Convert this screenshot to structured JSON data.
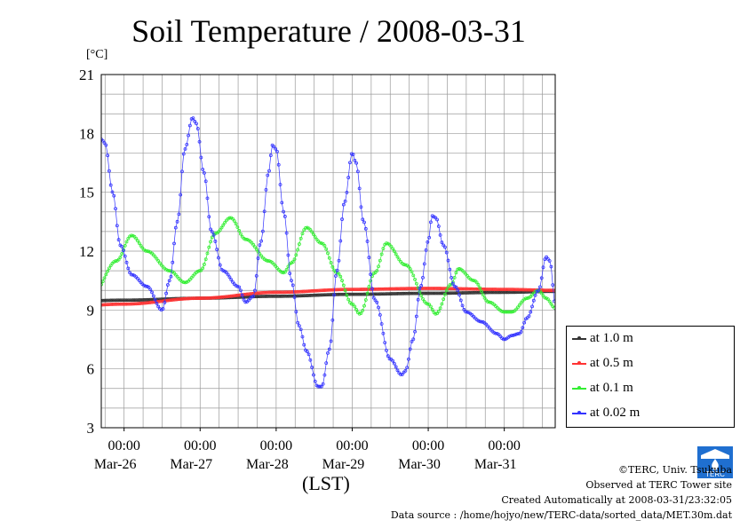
{
  "title": "Soil Temperature / 2008-03-31",
  "unit_label": "[°C]",
  "x_axis_label": "(LST)",
  "legend": [
    {
      "label": "at 1.0 m",
      "color": "#333333"
    },
    {
      "label": "at 0.5 m",
      "color": "#ff3333"
    },
    {
      "label": "at 0.1 m",
      "color": "#33ee33"
    },
    {
      "label": "at 0.02 m",
      "color": "#3333ff"
    }
  ],
  "footer": {
    "copyright": "©TERC, Univ. Tsukuba",
    "site": "Observed at TERC Tower site",
    "created": "Created Automatically at 2008-03-31/23:32:05",
    "source": "Data source : /home/hojyo/new/TERC-data/sorted_data/MET.30m.dat"
  },
  "logo_text": "TERC",
  "chart_data": {
    "type": "line",
    "title": "Soil Temperature / 2008-03-31",
    "ylabel": "[°C]",
    "xlabel": "(LST)",
    "ylim": [
      3,
      21
    ],
    "yticks": [
      3,
      6,
      9,
      12,
      15,
      18,
      21
    ],
    "xlim_days": [
      -0.3,
      5.67
    ],
    "x_ticks": [
      {
        "time": "00:00",
        "date": "Mar-26"
      },
      {
        "time": "00:00",
        "date": "Mar-27"
      },
      {
        "time": "00:00",
        "date": "Mar-28"
      },
      {
        "time": "00:00",
        "date": "Mar-29"
      },
      {
        "time": "00:00",
        "date": "Mar-30"
      },
      {
        "time": "00:00",
        "date": "Mar-31"
      }
    ],
    "grid": true,
    "legend_position": "right",
    "series": [
      {
        "name": "at 1.0 m",
        "color": "#333333",
        "points": [
          [
            -1.0,
            9.4
          ],
          [
            0.0,
            9.5
          ],
          [
            1.0,
            9.6
          ],
          [
            2.0,
            9.7
          ],
          [
            3.0,
            9.8
          ],
          [
            4.0,
            9.85
          ],
          [
            5.0,
            9.9
          ],
          [
            5.67,
            9.95
          ]
        ]
      },
      {
        "name": "at 0.5 m",
        "color": "#ff3333",
        "points": [
          [
            -1.0,
            9.1
          ],
          [
            0.0,
            9.3
          ],
          [
            1.0,
            9.6
          ],
          [
            2.0,
            9.9
          ],
          [
            3.0,
            10.05
          ],
          [
            4.0,
            10.1
          ],
          [
            5.0,
            10.05
          ],
          [
            5.67,
            10.0
          ]
        ]
      },
      {
        "name": "at 0.1 m",
        "color": "#33ee33",
        "points": [
          [
            -1.0,
            11.2
          ],
          [
            -0.7,
            10.5
          ],
          [
            -0.4,
            9.9
          ],
          [
            -0.1,
            11.5
          ],
          [
            0.1,
            12.8
          ],
          [
            0.3,
            12.0
          ],
          [
            0.6,
            11.0
          ],
          [
            0.8,
            10.4
          ],
          [
            1.0,
            11.0
          ],
          [
            1.2,
            12.9
          ],
          [
            1.4,
            13.7
          ],
          [
            1.6,
            12.6
          ],
          [
            1.9,
            11.5
          ],
          [
            2.1,
            10.9
          ],
          [
            2.2,
            11.4
          ],
          [
            2.4,
            13.2
          ],
          [
            2.6,
            12.4
          ],
          [
            2.8,
            10.9
          ],
          [
            3.0,
            9.3
          ],
          [
            3.1,
            8.8
          ],
          [
            3.3,
            10.9
          ],
          [
            3.45,
            12.4
          ],
          [
            3.7,
            11.3
          ],
          [
            4.0,
            9.3
          ],
          [
            4.1,
            8.8
          ],
          [
            4.3,
            10.3
          ],
          [
            4.4,
            11.1
          ],
          [
            4.6,
            10.5
          ],
          [
            4.8,
            9.4
          ],
          [
            5.0,
            8.9
          ],
          [
            5.1,
            8.9
          ],
          [
            5.3,
            9.6
          ],
          [
            5.45,
            10.0
          ],
          [
            5.55,
            9.6
          ],
          [
            5.67,
            9.1
          ]
        ]
      },
      {
        "name": "at 0.02 m",
        "color": "#3333ff",
        "points": [
          [
            -1.0,
            9.9
          ],
          [
            -0.8,
            9.6
          ],
          [
            -0.7,
            9.1
          ],
          [
            -0.6,
            8.7
          ],
          [
            -0.55,
            9.5
          ],
          [
            -0.45,
            12.3
          ],
          [
            -0.35,
            16.2
          ],
          [
            -0.3,
            17.7
          ],
          [
            -0.25,
            17.5
          ],
          [
            -0.15,
            15.0
          ],
          [
            -0.05,
            12.3
          ],
          [
            0.1,
            10.8
          ],
          [
            0.3,
            10.2
          ],
          [
            0.5,
            9.0
          ],
          [
            0.6,
            10.5
          ],
          [
            0.7,
            13.5
          ],
          [
            0.8,
            17.2
          ],
          [
            0.9,
            18.8
          ],
          [
            0.95,
            18.5
          ],
          [
            1.05,
            16.0
          ],
          [
            1.15,
            13.0
          ],
          [
            1.3,
            11.0
          ],
          [
            1.5,
            10.2
          ],
          [
            1.6,
            9.4
          ],
          [
            1.7,
            9.7
          ],
          [
            1.8,
            12.5
          ],
          [
            1.9,
            16.0
          ],
          [
            1.95,
            17.4
          ],
          [
            2.0,
            17.2
          ],
          [
            2.1,
            14.0
          ],
          [
            2.2,
            10.5
          ],
          [
            2.3,
            8.2
          ],
          [
            2.4,
            6.9
          ],
          [
            2.55,
            5.1
          ],
          [
            2.6,
            5.1
          ],
          [
            2.7,
            7.0
          ],
          [
            2.8,
            11.0
          ],
          [
            2.9,
            14.5
          ],
          [
            3.0,
            17.0
          ],
          [
            3.05,
            16.5
          ],
          [
            3.15,
            13.5
          ],
          [
            3.3,
            9.5
          ],
          [
            3.5,
            6.5
          ],
          [
            3.65,
            5.7
          ],
          [
            3.7,
            5.9
          ],
          [
            3.8,
            7.5
          ],
          [
            3.9,
            10.2
          ],
          [
            4.0,
            12.5
          ],
          [
            4.05,
            13.8
          ],
          [
            4.1,
            13.7
          ],
          [
            4.2,
            12.3
          ],
          [
            4.35,
            10.2
          ],
          [
            4.5,
            8.9
          ],
          [
            4.7,
            8.4
          ],
          [
            4.9,
            7.8
          ],
          [
            5.0,
            7.5
          ],
          [
            5.1,
            7.7
          ],
          [
            5.2,
            7.8
          ],
          [
            5.3,
            8.6
          ],
          [
            5.45,
            10.0
          ],
          [
            5.55,
            11.7
          ],
          [
            5.6,
            11.5
          ],
          [
            5.67,
            9.3
          ]
        ]
      }
    ]
  }
}
